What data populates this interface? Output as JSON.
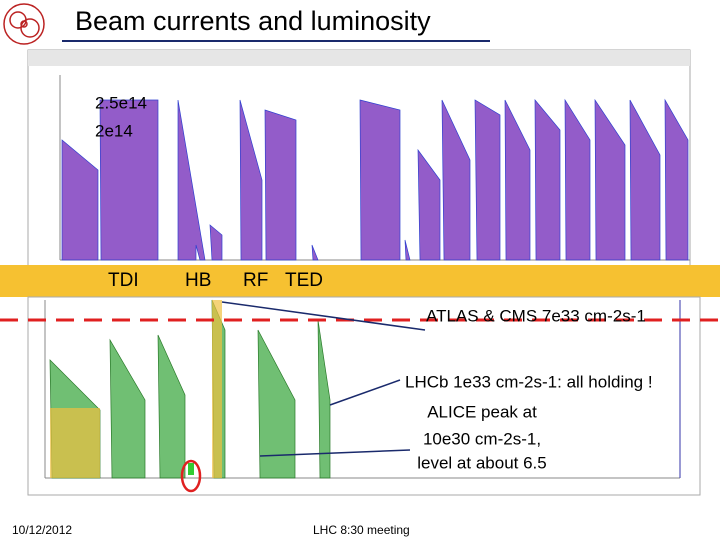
{
  "header": {
    "title": "Beam currents and luminosity"
  },
  "top_plot": {
    "labels": [
      "2.5e14",
      "2e14"
    ]
  },
  "band": {
    "labels": [
      "TDI",
      "HB",
      "RF",
      "TED"
    ]
  },
  "bottom_plot": {
    "annotations": [
      "ATLAS & CMS 7e33 cm-2s-1",
      "LHCb 1e33 cm-2s-1: all holding !",
      "ALICE peak at",
      "10e30 cm-2s-1,",
      "level at about 6.5"
    ]
  },
  "footer": {
    "date": "10/12/2012",
    "meeting": "LHC 8:30 meeting"
  }
}
